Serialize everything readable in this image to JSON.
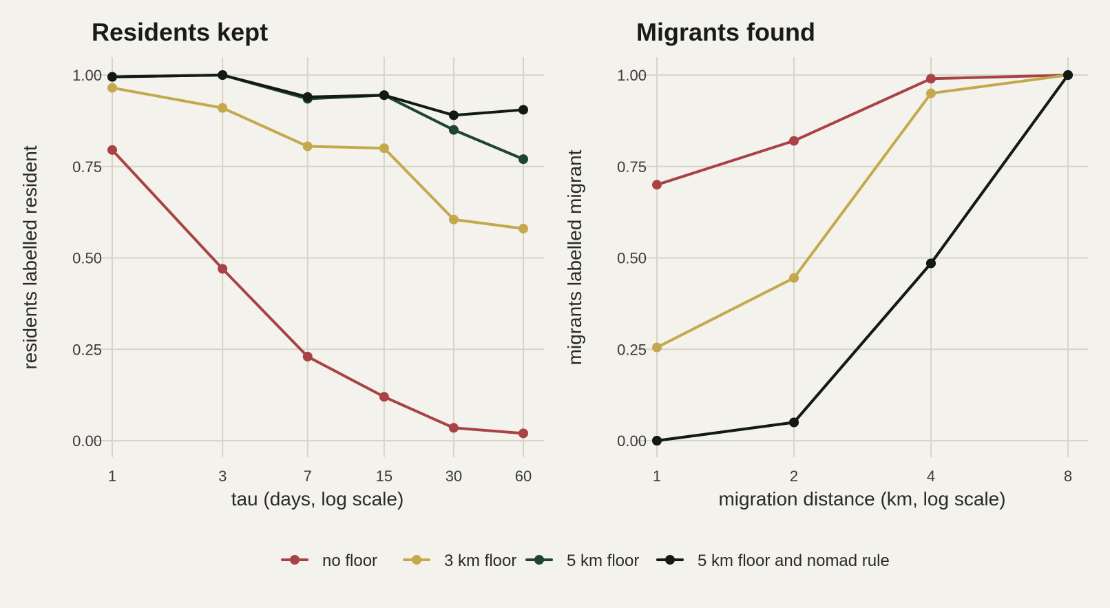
{
  "chart_data": [
    {
      "type": "line",
      "title": "Residents kept",
      "xlabel": "tau (days, log scale)",
      "ylabel": "residents labelled resident",
      "x_scale": "log",
      "x": [
        1,
        3,
        7,
        15,
        30,
        60
      ],
      "x_tick_labels": [
        "1",
        "3",
        "7",
        "15",
        "30",
        "60"
      ],
      "ylim": [
        0,
        1
      ],
      "y_ticks": [
        0,
        0.25,
        0.5,
        0.75,
        1
      ],
      "y_tick_labels": [
        "0.00",
        "0.25",
        "0.50",
        "0.75",
        "1.00"
      ],
      "grid": true,
      "series": [
        {
          "name": "no floor",
          "color": "#a84245",
          "values": [
            0.795,
            0.47,
            0.23,
            0.12,
            0.035,
            0.02
          ]
        },
        {
          "name": "3 km floor",
          "color": "#c4a94c",
          "values": [
            0.965,
            0.91,
            0.805,
            0.8,
            0.605,
            0.58
          ]
        },
        {
          "name": "5 km floor",
          "color": "#1e4531",
          "values": [
            0.995,
            1.0,
            0.935,
            0.945,
            0.85,
            0.77
          ]
        },
        {
          "name": "5 km floor and nomad rule",
          "color": "#131a16",
          "values": [
            0.995,
            1.0,
            0.94,
            0.945,
            0.89,
            0.905
          ]
        }
      ]
    },
    {
      "type": "line",
      "title": "Migrants found",
      "xlabel": "migration distance (km, log scale)",
      "ylabel": "migrants labelled migrant",
      "x_scale": "log",
      "x": [
        1,
        2,
        4,
        8
      ],
      "x_tick_labels": [
        "1",
        "2",
        "4",
        "8"
      ],
      "ylim": [
        0,
        1
      ],
      "y_ticks": [
        0,
        0.25,
        0.5,
        0.75,
        1
      ],
      "y_tick_labels": [
        "0.00",
        "0.25",
        "0.50",
        "0.75",
        "1.00"
      ],
      "grid": true,
      "series": [
        {
          "name": "no floor",
          "color": "#a84245",
          "values": [
            0.7,
            0.82,
            0.99,
            1.0
          ]
        },
        {
          "name": "3 km floor",
          "color": "#c4a94c",
          "values": [
            0.255,
            0.445,
            0.95,
            1.0
          ]
        },
        {
          "name": "5 km floor",
          "color": "#1e4531",
          "values": [
            0.0,
            0.05,
            0.485,
            1.0
          ]
        },
        {
          "name": "5 km floor and nomad rule",
          "color": "#131a16",
          "values": [
            0.0,
            0.05,
            0.485,
            1.0
          ]
        }
      ]
    }
  ],
  "legend": {
    "position": "bottom",
    "items": [
      {
        "label": "no floor",
        "color": "#a84245"
      },
      {
        "label": "3 km floor",
        "color": "#c4a94c"
      },
      {
        "label": "5 km floor",
        "color": "#1e4531"
      },
      {
        "label": "5 km floor and nomad rule",
        "color": "#131a16"
      }
    ]
  }
}
